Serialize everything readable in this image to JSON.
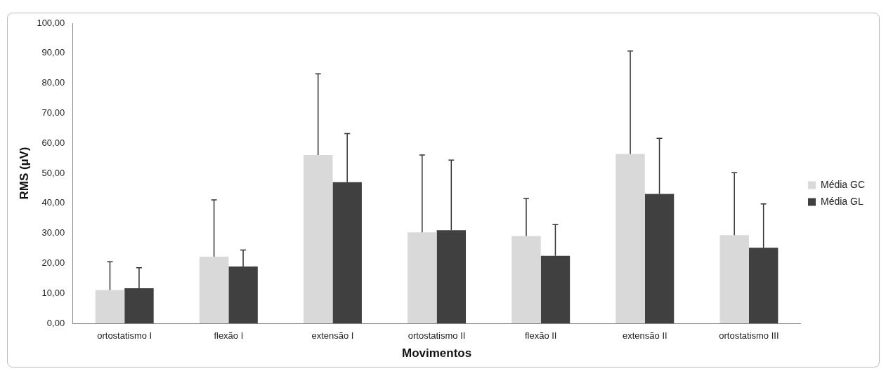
{
  "chart_data": {
    "type": "bar",
    "xlabel": "Movimentos",
    "ylabel": "RMS (µV)",
    "categories": [
      "ortostatismo I",
      "flexão I",
      "extensão I",
      "ortostatismo II",
      "flexão II",
      "extensão II",
      "ortostatismo III"
    ],
    "series": [
      {
        "name": "Média GC",
        "color": "#d9d9d9",
        "values": [
          11.1,
          22.2,
          56.1,
          30.3,
          29.1,
          56.4,
          29.4
        ],
        "errors": [
          [
            11.1,
            20.5
          ],
          [
            22.2,
            41.1
          ],
          [
            56.1,
            83.1
          ],
          [
            30.3,
            56.1
          ],
          [
            29.1,
            41.6
          ],
          [
            56.4,
            90.7
          ],
          [
            29.4,
            50.2
          ]
        ]
      },
      {
        "name": "Média GL",
        "color": "#404040",
        "values": [
          11.7,
          18.9,
          47.0,
          31.0,
          22.5,
          43.1,
          25.2
        ],
        "errors": [
          [
            11.7,
            18.5
          ],
          [
            18.9,
            24.4
          ],
          [
            47.0,
            63.2
          ],
          [
            31.0,
            54.4
          ],
          [
            22.5,
            32.9
          ],
          [
            43.1,
            61.6
          ],
          [
            25.2,
            39.8
          ]
        ]
      }
    ],
    "ylim": [
      0,
      100
    ],
    "yticks": [
      {
        "value": 0,
        "label": "0,00"
      },
      {
        "value": 10,
        "label": "10,00"
      },
      {
        "value": 20,
        "label": "20,00"
      },
      {
        "value": 30,
        "label": "30,00"
      },
      {
        "value": 40,
        "label": "40,00"
      },
      {
        "value": 50,
        "label": "50,00"
      },
      {
        "value": 60,
        "label": "60,00"
      },
      {
        "value": 70,
        "label": "70,00"
      },
      {
        "value": 80,
        "label": "80,00"
      },
      {
        "value": 90,
        "label": "90,00"
      },
      {
        "value": 100,
        "label": "100,00"
      }
    ],
    "grid": false,
    "legend": "right"
  }
}
